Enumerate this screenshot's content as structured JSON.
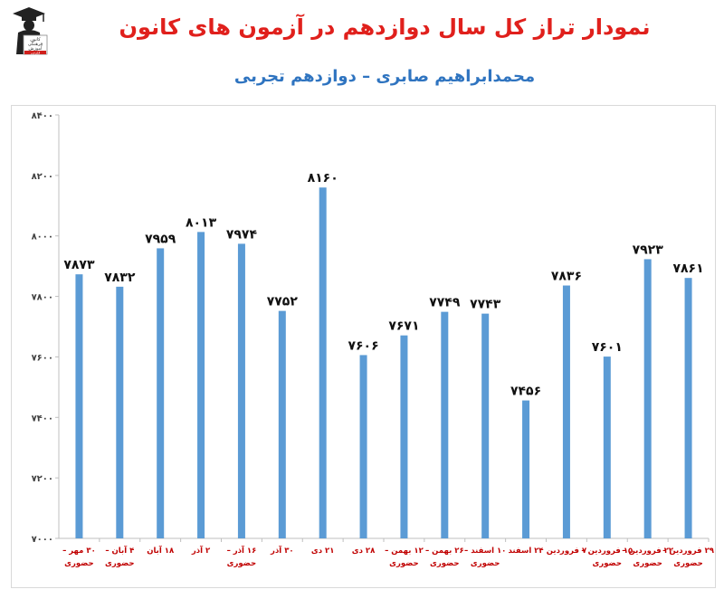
{
  "header": {
    "title": "نمودار تراز کل سال دوازدهم در آزمون های کانون",
    "subtitle": "محمدابراهیم صابری – دوازدهم تجربی"
  },
  "logo": {
    "lines": [
      "کانون",
      "فرهنگی",
      "آموزش",
      "قلم‌چی"
    ],
    "icon": "graduate-logo-icon"
  },
  "colors": {
    "bar": "#5b9bd5",
    "title": "#e0201c",
    "subtitle": "#2f74c0",
    "category": "#c00000",
    "grid": "#d9d9d9"
  },
  "chart_data": {
    "type": "bar",
    "categories": [
      "۳۰ مهر – حضوری",
      "۴ آبان – حضوری",
      "۱۸ آبان",
      "۲ آذر",
      "۱۶ آذر – حضوری",
      "۳۰ آذر",
      "۲۱ دی",
      "۲۸ دی",
      "۱۲ بهمن – حضوری",
      "۲۶ بهمن – حضوری",
      "۱۰ اسفند – حضوری",
      "۲۴ اسفند",
      "۷ فروردین",
      "۱۵ فروردین – حضوری",
      "۲۲ فروردین – حضوری",
      "۲۹ فروردین – حضوری"
    ],
    "values": [
      7873,
      7832,
      7959,
      8013,
      7974,
      7752,
      8160,
      7606,
      7671,
      7749,
      7743,
      7456,
      7836,
      7601,
      7923,
      7861
    ],
    "value_labels": [
      "۷۸۷۳",
      "۷۸۳۲",
      "۷۹۵۹",
      "۸۰۱۳",
      "۷۹۷۴",
      "۷۷۵۲",
      "۸۱۶۰",
      "۷۶۰۶",
      "۷۶۷۱",
      "۷۷۴۹",
      "۷۷۴۳",
      "۷۴۵۶",
      "۷۸۳۶",
      "۷۶۰۱",
      "۷۹۲۳",
      "۷۸۶۱"
    ],
    "ylim": [
      7000,
      8400
    ],
    "yticks": [
      7000,
      7200,
      7400,
      7600,
      7800,
      8000,
      8200,
      8400
    ],
    "ytick_labels": [
      "۷۰۰۰",
      "۷۲۰۰",
      "۷۴۰۰",
      "۷۶۰۰",
      "۷۸۰۰",
      "۸۰۰۰",
      "۸۲۰۰",
      "۸۴۰۰"
    ],
    "grid": false,
    "legend": "none"
  }
}
